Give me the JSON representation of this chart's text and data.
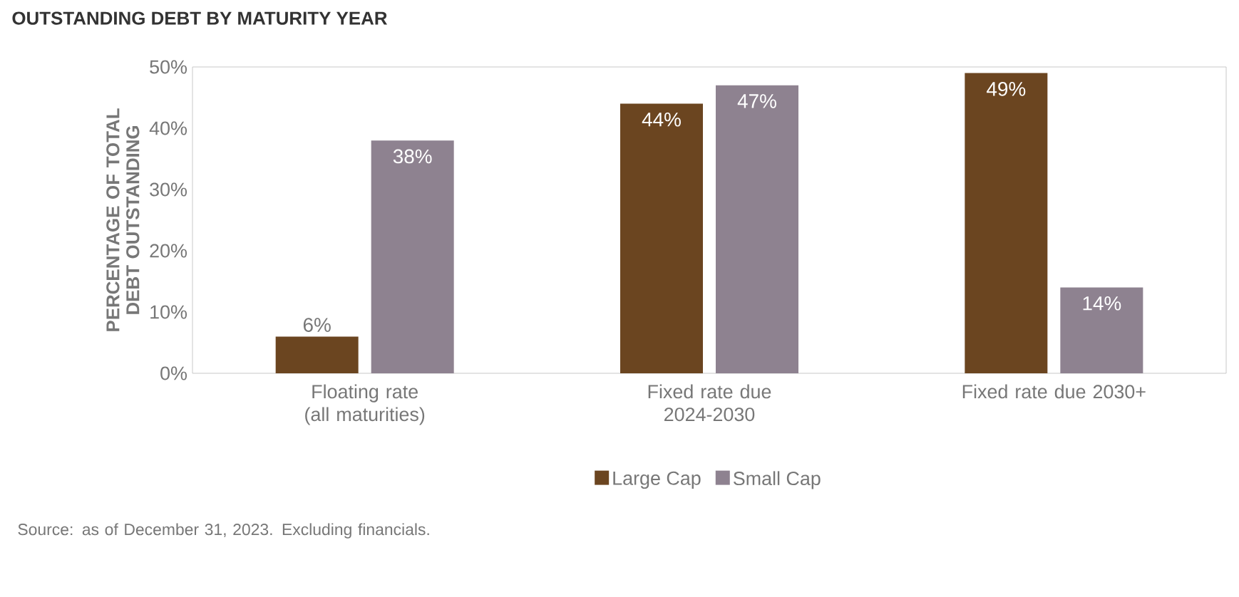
{
  "chart_data": {
    "type": "bar",
    "title": "OUTSTANDING DEBT BY MATURITY YEAR",
    "ylabel": "PERCENTAGE OF TOTAL DEBT OUTSTANDING",
    "categories": [
      "Floating rate (all maturities)",
      "Fixed rate due 2024-2030",
      "Fixed rate due 2030+"
    ],
    "series": [
      {
        "name": "Large Cap",
        "color": "#6b4520",
        "values": [
          6,
          44,
          49
        ],
        "value_labels": [
          "6%",
          "44%",
          "49%"
        ]
      },
      {
        "name": "Small Cap",
        "color": "#8e8290",
        "values": [
          38,
          47,
          14
        ],
        "value_labels": [
          "38%",
          "47%",
          "14%"
        ]
      }
    ],
    "ylim": [
      0,
      50
    ],
    "yticks": [
      {
        "value": 0,
        "label": "0%"
      },
      {
        "value": 10,
        "label": "10%"
      },
      {
        "value": 20,
        "label": "20%"
      },
      {
        "value": 30,
        "label": "30%"
      },
      {
        "value": 40,
        "label": "40%"
      },
      {
        "value": 50,
        "label": "50%"
      }
    ],
    "grid": false,
    "legend": "bottom",
    "annotations": [
      "Source: as of December 31, 2023. Excluding financials."
    ]
  }
}
